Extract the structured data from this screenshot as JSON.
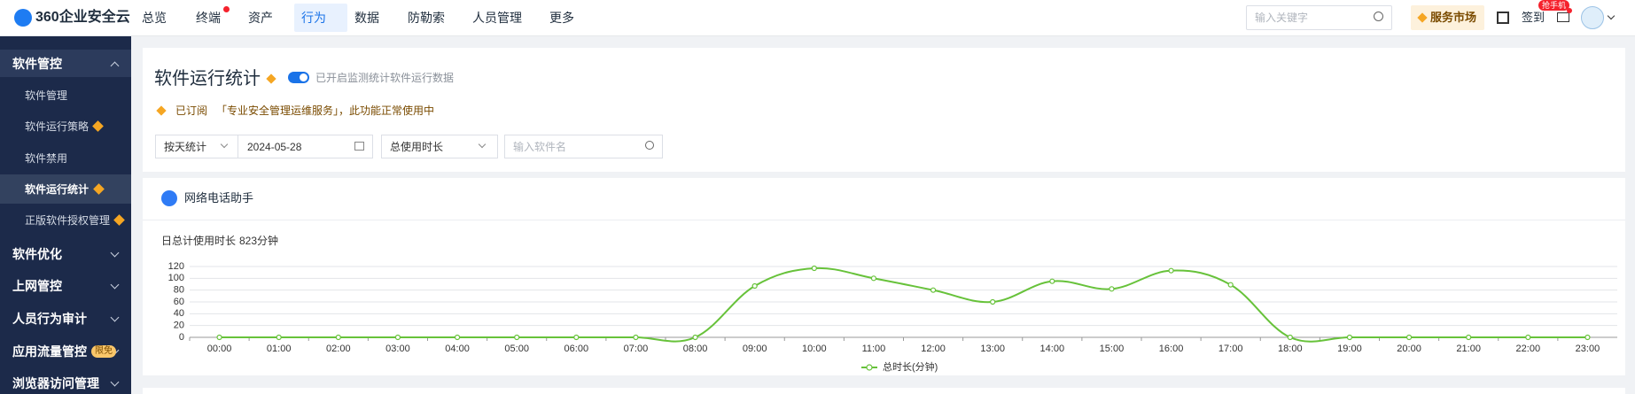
{
  "nav": {
    "logo": "360企业安全云",
    "items": [
      "总览",
      "终端",
      "资产",
      "行为",
      "数据",
      "防勒索",
      "人员管理",
      "更多"
    ],
    "search_placeholder": "输入关键字",
    "market": "服务市场",
    "sign_in": "签到",
    "sign_badge": "抢手机"
  },
  "sidebar": {
    "groups": [
      {
        "label": "软件管控",
        "children": [
          "软件管理",
          "软件运行策略",
          "软件禁用",
          "软件运行统计",
          "正版软件授权管理"
        ]
      },
      {
        "label": "软件优化"
      },
      {
        "label": "上网管控"
      },
      {
        "label": "人员行为审计"
      },
      {
        "label": "应用流量管控",
        "badge": "限免"
      },
      {
        "label": "浏览器访问管理"
      }
    ]
  },
  "header": {
    "title": "软件运行统计",
    "toggle_text": "已开启监测统计软件运行数据",
    "subscribed": "已订阅",
    "service": "「专业安全管理运维服务」",
    "status": "，此功能正常使用中"
  },
  "filters": {
    "mode": "按天统计",
    "date": "2024-05-28",
    "metric": "总使用时长",
    "software_placeholder": "输入软件名"
  },
  "chart_data": {
    "type": "line",
    "title": "网络电话助手",
    "summary_label": "日总计使用时长",
    "summary_value": "823分钟",
    "categories": [
      "00:00",
      "01:00",
      "02:00",
      "03:00",
      "04:00",
      "05:00",
      "06:00",
      "07:00",
      "08:00",
      "09:00",
      "10:00",
      "11:00",
      "12:00",
      "13:00",
      "14:00",
      "15:00",
      "16:00",
      "17:00",
      "18:00",
      "19:00",
      "20:00",
      "21:00",
      "22:00",
      "23:00"
    ],
    "series": [
      {
        "name": "总时长(分钟)",
        "color": "#67c23a",
        "values": [
          0,
          0,
          0,
          0,
          0,
          0,
          0,
          0,
          0,
          87,
          117,
          100,
          80,
          60,
          95,
          82,
          113,
          89,
          0,
          0,
          0,
          0,
          0,
          0
        ]
      }
    ],
    "ylim": [
      0,
      120
    ],
    "yticks": [
      0,
      20,
      40,
      60,
      80,
      100,
      120
    ],
    "grid": true
  }
}
